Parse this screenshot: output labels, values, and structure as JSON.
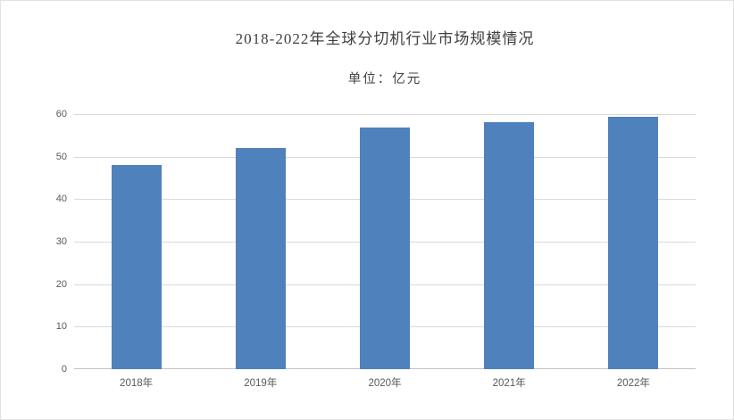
{
  "header": {
    "title": "2018-2022年全球分切机行业市场规模情况",
    "subtitle": "单位：亿元"
  },
  "chart_data": {
    "type": "bar",
    "title": "2018-2022年全球分切机行业市场规模情况",
    "subtitle": "单位：亿元",
    "unit": "亿元",
    "categories": [
      "2018年",
      "2019年",
      "2020年",
      "2021年",
      "2022年"
    ],
    "values": [
      48,
      52,
      56.8,
      58.2,
      59.3
    ],
    "xlabel": "",
    "ylabel": "",
    "ylim": [
      0,
      60
    ],
    "yticks": [
      0,
      10,
      20,
      30,
      40,
      50,
      60
    ],
    "grid": true,
    "legend": "none",
    "colors": {
      "bar": "#4f81bd",
      "gridline": "#d9d9d9",
      "axis_line": "#c3c3c3",
      "tick_label": "#595959",
      "title_text": "#3f3f3f",
      "frame_border": "#e2e2e2",
      "background": "#ffffff"
    }
  }
}
